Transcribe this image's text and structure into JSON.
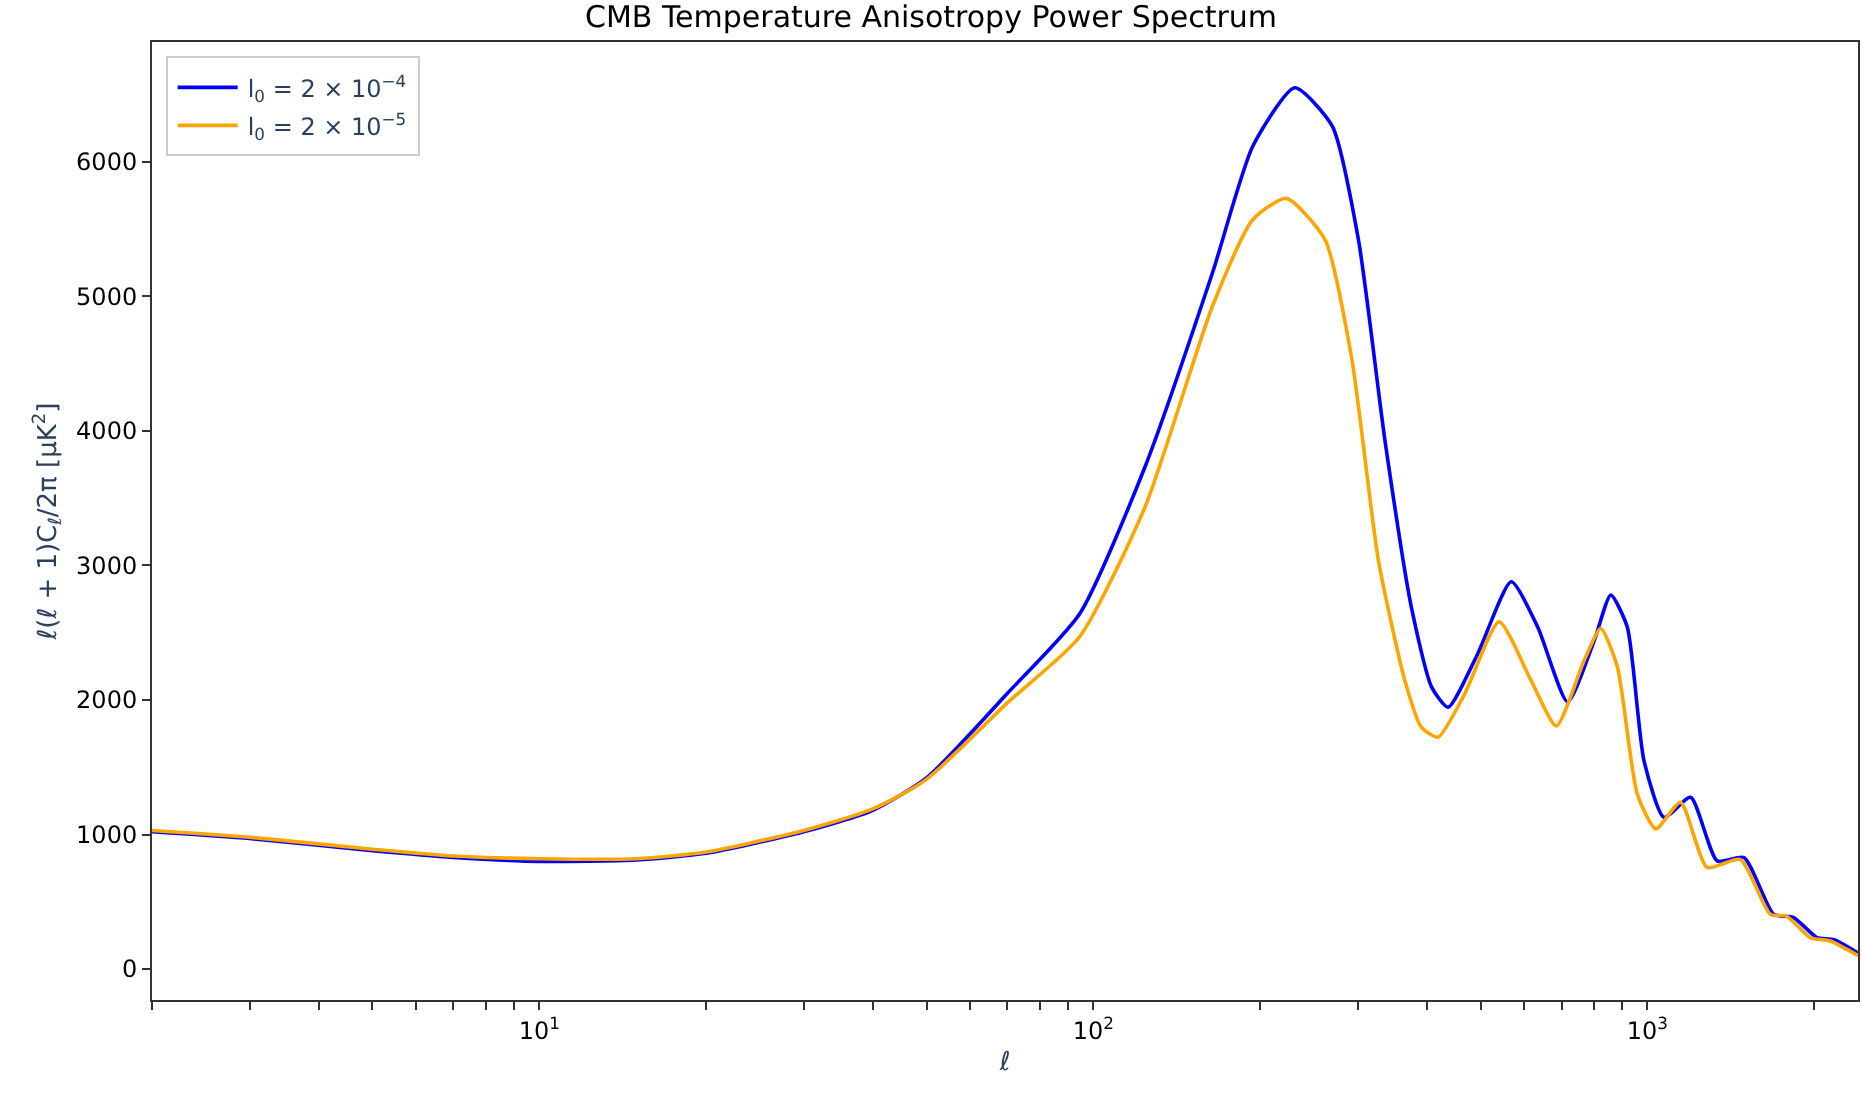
{
  "chart_data": {
    "type": "line",
    "title": "CMB Temperature Anisotropy Power Spectrum",
    "xlabel": "ℓ",
    "ylabel": "ℓ(ℓ + 1)C$_{ℓ}$/2π [μK$^{2}$]",
    "log": "x",
    "xlim": [
      2,
      2400
    ],
    "ylim": [
      -230,
      6890
    ],
    "xticks": [
      {
        "value": 2,
        "label": null
      },
      {
        "value": 3,
        "label": null
      },
      {
        "value": 4,
        "label": null
      },
      {
        "value": 5,
        "label": null
      },
      {
        "value": 6,
        "label": null
      },
      {
        "value": 7,
        "label": null
      },
      {
        "value": 8,
        "label": null
      },
      {
        "value": 9,
        "label": null
      },
      {
        "value": 10,
        "label": "10$^{1}$"
      },
      {
        "value": 20,
        "label": null
      },
      {
        "value": 30,
        "label": null
      },
      {
        "value": 40,
        "label": null
      },
      {
        "value": 50,
        "label": null
      },
      {
        "value": 60,
        "label": null
      },
      {
        "value": 70,
        "label": null
      },
      {
        "value": 80,
        "label": null
      },
      {
        "value": 90,
        "label": null
      },
      {
        "value": 100,
        "label": "10$^{2}$"
      },
      {
        "value": 200,
        "label": null
      },
      {
        "value": 300,
        "label": null
      },
      {
        "value": 400,
        "label": null
      },
      {
        "value": 500,
        "label": null
      },
      {
        "value": 600,
        "label": null
      },
      {
        "value": 700,
        "label": null
      },
      {
        "value": 800,
        "label": null
      },
      {
        "value": 900,
        "label": null
      },
      {
        "value": 1000,
        "label": "10$^{3}$"
      },
      {
        "value": 2000,
        "label": null
      }
    ],
    "yticks": [
      0,
      1000,
      2000,
      3000,
      4000,
      5000,
      6000
    ],
    "grid": false,
    "legend": "top left",
    "marker": "none",
    "line_style": "solid",
    "series": [
      {
        "name": "l$_{0}$ = 2 × 10$^{−4}$",
        "color": "#0000ff",
        "x": [
          2,
          3,
          5,
          7,
          10,
          15,
          20,
          30,
          40,
          50,
          70,
          94.5,
          124,
          164,
          194,
          231,
          270,
          301,
          336,
          375,
          408,
          437,
          494,
          568,
          634,
          718,
          802,
          859,
          920,
          986,
          1072,
          1197,
          1337,
          1494,
          1690,
          1837,
          2023,
          2167,
          2400
        ],
        "values": [
          1020,
          970,
          880,
          830,
          800,
          810,
          860,
          1020,
          1180,
          1420,
          2050,
          2640,
          3733,
          5171,
          6115,
          6550,
          6264,
          5420,
          3931,
          2690,
          2095,
          1946,
          2342,
          2878,
          2542,
          1985,
          2442,
          2780,
          2542,
          1549,
          1127,
          1276,
          804,
          829,
          407,
          383,
          234,
          219,
          119
        ]
      },
      {
        "name": "l$_{0}$ = 2 × 10$^{−5}$",
        "color": "#ffa500",
        "x": [
          2,
          3,
          5,
          7,
          10,
          15,
          20,
          30,
          40,
          50,
          70,
          94.5,
          124,
          164,
          194,
          223,
          262,
          293,
          327,
          365,
          391,
          419,
          468,
          540,
          617,
          685,
          769,
          824,
          883,
          959,
          1036,
          1148,
          1282,
          1472,
          1667,
          1785,
          1967,
          2138,
          2400
        ],
        "values": [
          1030,
          980,
          890,
          840,
          820,
          820,
          870,
          1030,
          1190,
          1410,
          1980,
          2470,
          3435,
          4924,
          5569,
          5728,
          5420,
          4527,
          3038,
          2144,
          1797,
          1723,
          2044,
          2581,
          2144,
          1806,
          2293,
          2531,
          2244,
          1300,
          1042,
          1240,
          755,
          814,
          407,
          392,
          234,
          208,
          100
        ]
      }
    ]
  }
}
